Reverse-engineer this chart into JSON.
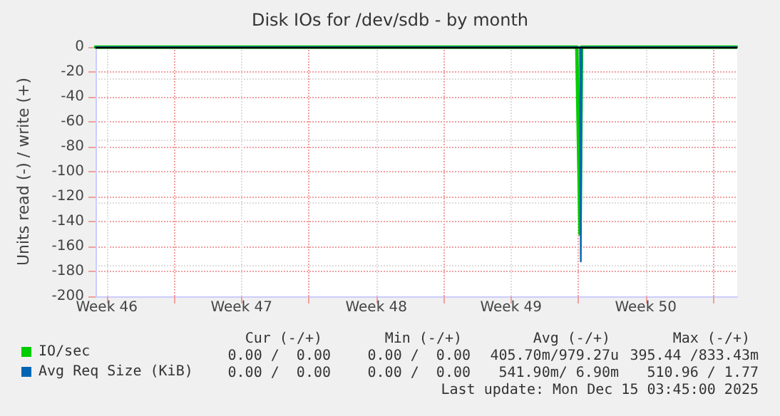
{
  "chart_data": {
    "type": "line",
    "title": "Disk IOs for /dev/sdb - by month",
    "ylabel": "Units read (-) / write (+)",
    "xlim": [
      "2025-11-12T22:00",
      "2025-12-16T06:00"
    ],
    "xticks": [
      {
        "value": "2025-11-13T12:00",
        "label": "Week 46"
      },
      {
        "value": "2025-11-17T00:00",
        "label": null
      },
      {
        "value": "2025-11-20T12:00",
        "label": "Week 47"
      },
      {
        "value": "2025-11-24T00:00",
        "label": null
      },
      {
        "value": "2025-11-27T12:00",
        "label": "Week 48"
      },
      {
        "value": "2025-12-01T00:00",
        "label": null
      },
      {
        "value": "2025-12-04T12:00",
        "label": "Week 49"
      },
      {
        "value": "2025-12-08T00:00",
        "label": null
      },
      {
        "value": "2025-12-11T12:00",
        "label": "Week 50"
      },
      {
        "value": "2025-12-15T00:00",
        "label": null
      }
    ],
    "ylim": [
      -200,
      0
    ],
    "yticks": [
      -200,
      -180,
      -160,
      -140,
      -120,
      -100,
      -80,
      -60,
      -40,
      -20,
      0
    ],
    "grid": true,
    "legend": "bottom left",
    "marker": "none",
    "line_style": "solid",
    "series": [
      {
        "name": "IO/sec",
        "color": "#00cc00",
        "x": [
          "2025-11-12T22:00",
          "2025-12-07T22:00",
          "2025-12-08T02:00",
          "2025-12-08T04:00",
          "2025-12-16T05:00"
        ],
        "values": [
          0,
          0,
          -150,
          0,
          0
        ]
      },
      {
        "name": "Avg Req Size (KiB)",
        "color": "#0066b3",
        "x": [
          "2025-11-12T22:00",
          "2025-12-08T02:00",
          "2025-12-08T03:00",
          "2025-12-08T04:00",
          "2025-12-16T05:00"
        ],
        "values": [
          0,
          0,
          -172,
          0,
          0
        ]
      }
    ],
    "annotations": [
      "Cur (-/+)",
      "Min (-/+)",
      "Avg (-/+)",
      "Max (-/+)",
      "0.00 /  0.00",
      "0.00 /  0.00",
      "405.70m/979.27u",
      "395.44 /833.43m",
      "0.00 /  0.00",
      "0.00 /  0.00",
      "541.90m/ 6.90m",
      "510.96 / 1.77",
      "Last update: Mon Dec 15 03:45:00 2025"
    ]
  }
}
